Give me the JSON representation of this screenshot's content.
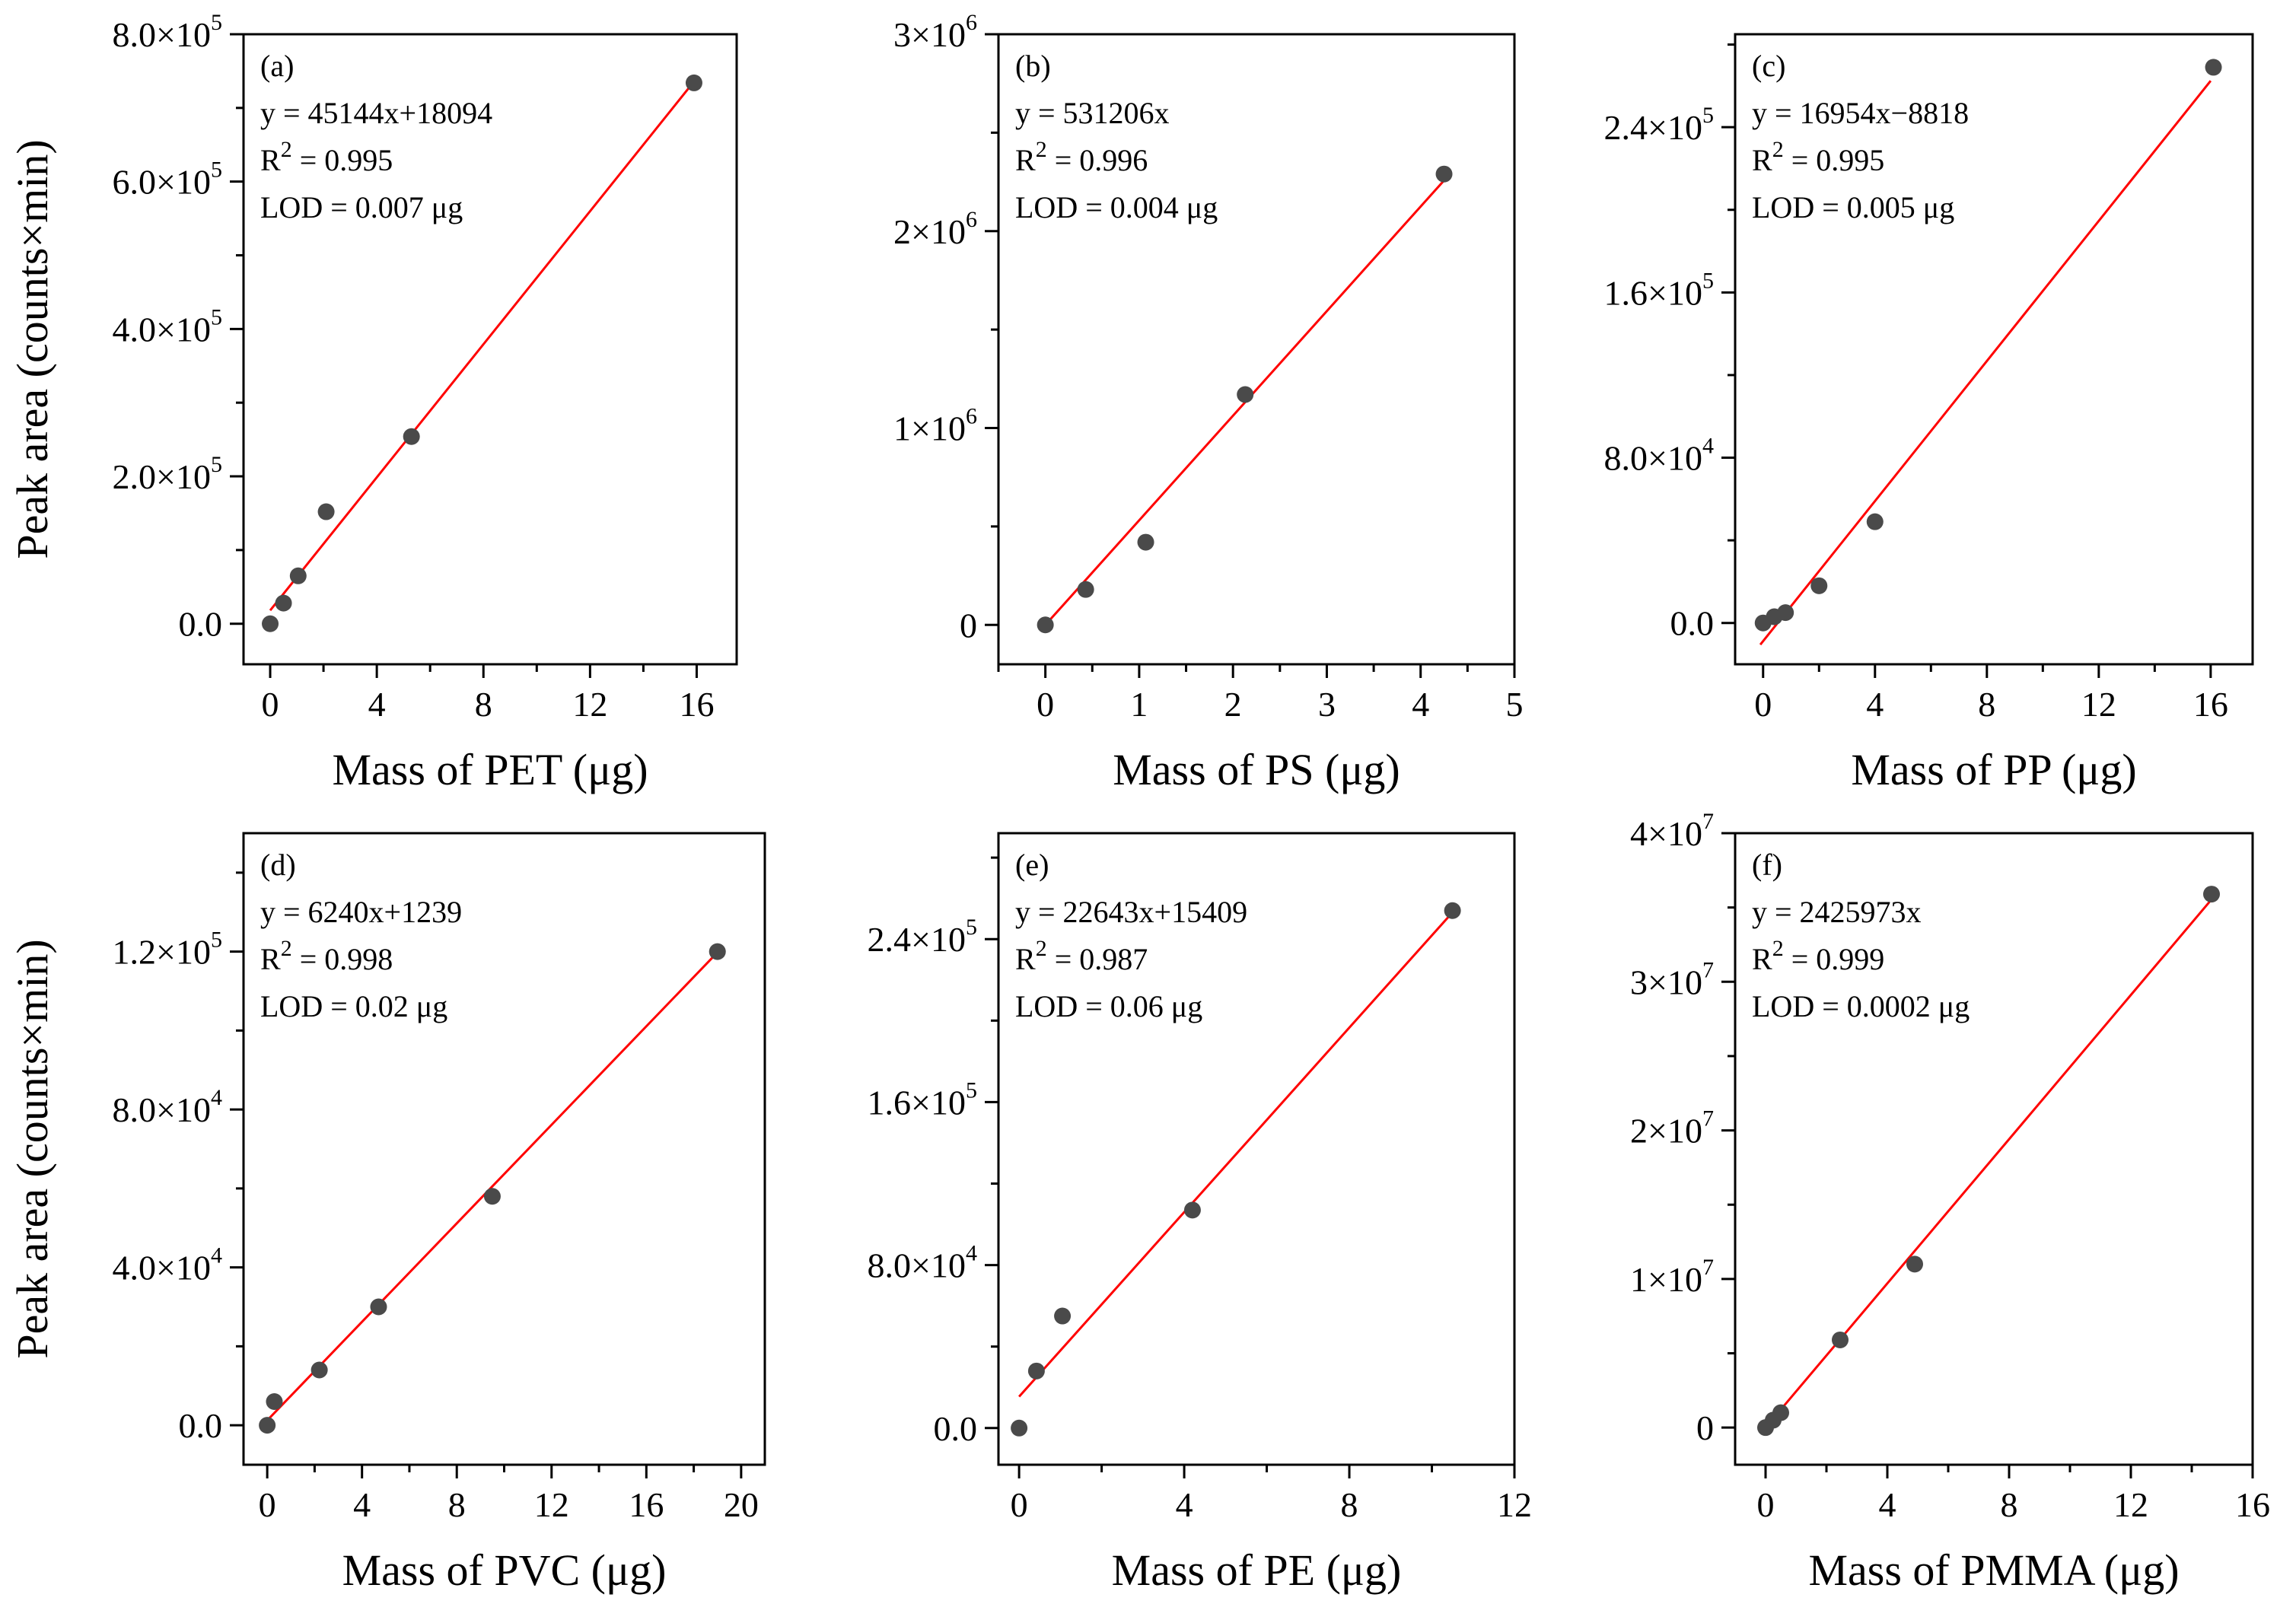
{
  "y_axis_label": "Peak area (counts×min)",
  "colors": {
    "fit_line": "#ff0000",
    "points": "#4a4a4a",
    "axes": "#000000"
  },
  "chart_data": [
    {
      "type": "scatter",
      "panel": "(a)",
      "xlabel": "Mass of PET (μg)",
      "ylabel": "Peak area (counts×min)",
      "xlim": [
        -1,
        17.5
      ],
      "ylim": [
        -55000,
        800000
      ],
      "xticks": [
        {
          "v": 0,
          "t": "0"
        },
        {
          "v": 4,
          "t": "4"
        },
        {
          "v": 8,
          "t": "8"
        },
        {
          "v": 12,
          "t": "12"
        },
        {
          "v": 16,
          "t": "16"
        }
      ],
      "yticks": [
        {
          "v": 0,
          "m": "0.0",
          "e": ""
        },
        {
          "v": 200000,
          "m": "2.0×10",
          "e": "5"
        },
        {
          "v": 400000,
          "m": "4.0×10",
          "e": "5"
        },
        {
          "v": 600000,
          "m": "6.0×10",
          "e": "5"
        },
        {
          "v": 800000,
          "m": "8.0×10",
          "e": "5"
        }
      ],
      "x": [
        0,
        0.5,
        1.05,
        2.1,
        5.3,
        15.9
      ],
      "y": [
        0,
        28000,
        65000,
        152000,
        254000,
        734000
      ],
      "fit": {
        "slope": 45144,
        "intercept": 18094,
        "x_range": [
          0,
          15.9
        ]
      },
      "annotations": {
        "label": "(a)",
        "equation": "y = 45144x+18094",
        "r2": "0.995",
        "lod": "LOD = 0.007 μg"
      }
    },
    {
      "type": "scatter",
      "panel": "(b)",
      "xlabel": "Mass of PS (μg)",
      "ylabel": "",
      "xlim": [
        -0.5,
        5
      ],
      "ylim": [
        -200000,
        3000000
      ],
      "xticks": [
        {
          "v": 0,
          "t": "0"
        },
        {
          "v": 1,
          "t": "1"
        },
        {
          "v": 2,
          "t": "2"
        },
        {
          "v": 3,
          "t": "3"
        },
        {
          "v": 4,
          "t": "4"
        },
        {
          "v": 5,
          "t": "5"
        }
      ],
      "yticks": [
        {
          "v": 0,
          "m": "0",
          "e": ""
        },
        {
          "v": 1000000,
          "m": "1×10",
          "e": "6"
        },
        {
          "v": 2000000,
          "m": "2×10",
          "e": "6"
        },
        {
          "v": 3000000,
          "m": "3×10",
          "e": "6"
        }
      ],
      "x": [
        0,
        0.43,
        1.07,
        2.13,
        4.25
      ],
      "y": [
        0,
        180000,
        420000,
        1170000,
        2290000
      ],
      "fit": {
        "slope": 531206,
        "intercept": 0,
        "x_range": [
          0,
          4.25
        ]
      },
      "annotations": {
        "label": "(b)",
        "equation": "y = 531206x",
        "r2": "0.996",
        "lod": "LOD = 0.004 μg"
      }
    },
    {
      "type": "scatter",
      "panel": "(c)",
      "xlabel": "Mass of PP (μg)",
      "ylabel": "",
      "xlim": [
        -1,
        17.5
      ],
      "ylim": [
        -20000,
        285000
      ],
      "xticks": [
        {
          "v": 0,
          "t": "0"
        },
        {
          "v": 4,
          "t": "4"
        },
        {
          "v": 8,
          "t": "8"
        },
        {
          "v": 12,
          "t": "12"
        },
        {
          "v": 16,
          "t": "16"
        }
      ],
      "yticks": [
        {
          "v": 0,
          "m": "0.0",
          "e": ""
        },
        {
          "v": 80000,
          "m": "8.0×10",
          "e": "4"
        },
        {
          "v": 160000,
          "m": "1.6×10",
          "e": "5"
        },
        {
          "v": 240000,
          "m": "2.4×10",
          "e": "5"
        }
      ],
      "x": [
        0,
        0.4,
        0.8,
        2.0,
        4.0,
        16.1
      ],
      "y": [
        0,
        3000,
        5000,
        18000,
        49000,
        269000
      ],
      "fit": {
        "slope": 16954,
        "intercept": -8818,
        "x_range": [
          -0.1,
          16.0
        ]
      },
      "annotations": {
        "label": "(c)",
        "equation": "y = 16954x−8818",
        "r2": "0.995",
        "lod": "LOD = 0.005 μg"
      }
    },
    {
      "type": "scatter",
      "panel": "(d)",
      "xlabel": "Mass of PVC (μg)",
      "ylabel": "Peak area (counts×min)",
      "xlim": [
        -1,
        21
      ],
      "ylim": [
        -10000,
        150000
      ],
      "xticks": [
        {
          "v": 0,
          "t": "0"
        },
        {
          "v": 4,
          "t": "4"
        },
        {
          "v": 8,
          "t": "8"
        },
        {
          "v": 12,
          "t": "12"
        },
        {
          "v": 16,
          "t": "16"
        },
        {
          "v": 20,
          "t": "20"
        }
      ],
      "yticks": [
        {
          "v": 0,
          "m": "0.0",
          "e": ""
        },
        {
          "v": 40000,
          "m": "4.0×10",
          "e": "4"
        },
        {
          "v": 80000,
          "m": "8.0×10",
          "e": "4"
        },
        {
          "v": 120000,
          "m": "1.2×10",
          "e": "5"
        }
      ],
      "x": [
        0,
        0.3,
        2.2,
        4.7,
        9.5,
        19.0
      ],
      "y": [
        0,
        6000,
        14000,
        30000,
        58000,
        120000
      ],
      "fit": {
        "slope": 6240,
        "intercept": 1239,
        "x_range": [
          0,
          19.0
        ]
      },
      "annotations": {
        "label": "(d)",
        "equation": "y = 6240x+1239",
        "r2": "0.998",
        "lod": "LOD = 0.02 μg"
      }
    },
    {
      "type": "scatter",
      "panel": "(e)",
      "xlabel": "Mass of PE (μg)",
      "ylabel": "",
      "xlim": [
        -0.5,
        12
      ],
      "ylim": [
        -18000,
        292000
      ],
      "xticks": [
        {
          "v": 0,
          "t": "0"
        },
        {
          "v": 4,
          "t": "4"
        },
        {
          "v": 8,
          "t": "8"
        },
        {
          "v": 12,
          "t": "12"
        }
      ],
      "yticks": [
        {
          "v": 0,
          "m": "0.0",
          "e": ""
        },
        {
          "v": 80000,
          "m": "8.0×10",
          "e": "4"
        },
        {
          "v": 160000,
          "m": "1.6×10",
          "e": "5"
        },
        {
          "v": 240000,
          "m": "2.4×10",
          "e": "5"
        }
      ],
      "x": [
        0,
        0.42,
        1.05,
        4.2,
        10.5
      ],
      "y": [
        0,
        28000,
        55000,
        107000,
        254000
      ],
      "fit": {
        "slope": 22643,
        "intercept": 15409,
        "x_range": [
          0,
          10.5
        ]
      },
      "annotations": {
        "label": "(e)",
        "equation": "y = 22643x+15409",
        "r2": "0.987",
        "lod": "LOD = 0.06 μg"
      }
    },
    {
      "type": "scatter",
      "panel": "(f)",
      "xlabel": "Mass of PMMA (μg)",
      "ylabel": "",
      "xlim": [
        -1,
        16
      ],
      "ylim": [
        -2500000,
        40000000
      ],
      "xticks": [
        {
          "v": 0,
          "t": "0"
        },
        {
          "v": 4,
          "t": "4"
        },
        {
          "v": 8,
          "t": "8"
        },
        {
          "v": 12,
          "t": "12"
        },
        {
          "v": 16,
          "t": "16"
        }
      ],
      "yticks": [
        {
          "v": 0,
          "m": "0",
          "e": ""
        },
        {
          "v": 10000000,
          "m": "1×10",
          "e": "7"
        },
        {
          "v": 20000000,
          "m": "2×10",
          "e": "7"
        },
        {
          "v": 30000000,
          "m": "3×10",
          "e": "7"
        },
        {
          "v": 40000000,
          "m": "4×10",
          "e": "7"
        }
      ],
      "x": [
        0,
        0.25,
        0.5,
        2.45,
        4.9,
        14.65
      ],
      "y": [
        0,
        500000,
        1000000,
        5900000,
        11000000,
        35900000
      ],
      "fit": {
        "slope": 2425973,
        "intercept": 0,
        "x_range": [
          0,
          14.65
        ]
      },
      "annotations": {
        "label": "(f)",
        "equation": "y = 2425973x",
        "r2": "0.999",
        "lod": "LOD = 0.0002 μg"
      }
    }
  ]
}
